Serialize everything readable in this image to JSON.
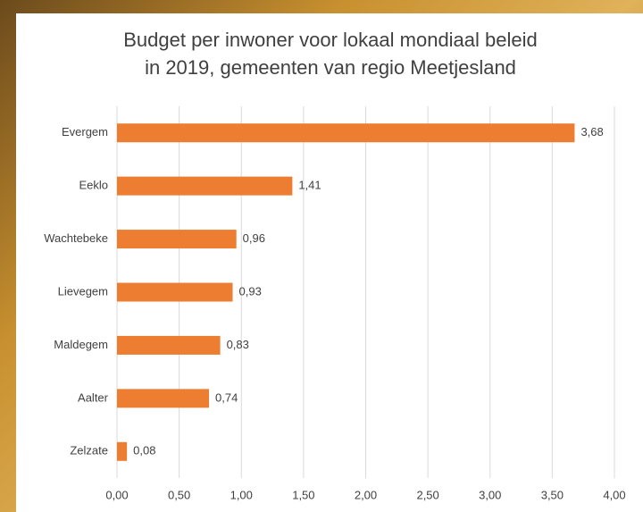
{
  "chart_data": {
    "type": "barh",
    "title": [
      "Budget per inwoner voor lokaal mondiaal beleid",
      "in 2019, gemeenten van regio Meetjesland"
    ],
    "categories": [
      "Evergem",
      "Eeklo",
      "Wachtebeke",
      "Lievegem",
      "Maldegem",
      "Aalter",
      "Zelzate"
    ],
    "values": [
      3.68,
      1.41,
      0.96,
      0.93,
      0.83,
      0.74,
      0.08
    ],
    "value_labels": [
      "3,68",
      "1,41",
      "0,96",
      "0,93",
      "0,83",
      "0,74",
      "0,08"
    ],
    "color": "#ed7d31",
    "xlim": [
      0,
      4
    ],
    "xticks": [
      {
        "value": 0,
        "label": "0,00"
      },
      {
        "value": 0.5,
        "label": "0,50"
      },
      {
        "value": 1,
        "label": "1,00"
      },
      {
        "value": 1.5,
        "label": "1,50"
      },
      {
        "value": 2,
        "label": "2,00"
      },
      {
        "value": 2.5,
        "label": "2,50"
      },
      {
        "value": 3,
        "label": "3,00"
      },
      {
        "value": 3.5,
        "label": "3,50"
      },
      {
        "value": 4,
        "label": "4,00"
      }
    ],
    "grid": true
  }
}
